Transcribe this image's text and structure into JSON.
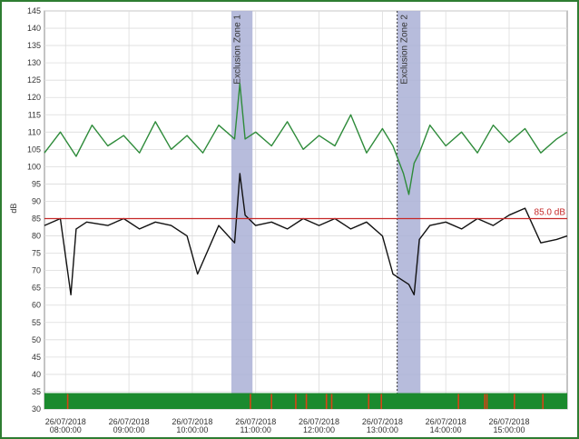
{
  "chart_data": {
    "type": "line",
    "title": "",
    "xlabel": "",
    "ylabel": "dB",
    "ylim": [
      30,
      145
    ],
    "yticks": [
      30,
      35,
      40,
      45,
      50,
      55,
      60,
      65,
      70,
      75,
      80,
      85,
      90,
      95,
      100,
      105,
      110,
      115,
      120,
      125,
      130,
      135,
      140,
      145
    ],
    "xlim": [
      "07:40",
      "15:55"
    ],
    "xticks": [
      {
        "date": "26/07/2018",
        "time": "08:00:00"
      },
      {
        "date": "26/07/2018",
        "time": "09:00:00"
      },
      {
        "date": "26/07/2018",
        "time": "10:00:00"
      },
      {
        "date": "26/07/2018",
        "time": "11:00:00"
      },
      {
        "date": "26/07/2018",
        "time": "12:00:00"
      },
      {
        "date": "26/07/2018",
        "time": "13:00:00"
      },
      {
        "date": "26/07/2018",
        "time": "14:00:00"
      },
      {
        "date": "26/07/2018",
        "time": "15:00:00"
      }
    ],
    "grid": true,
    "reference_line": {
      "value": 85.0,
      "label": "85.0 dB",
      "color": "#c62828"
    },
    "exclusion_zones": [
      {
        "label": "Exclusion Zone 1",
        "start": "10:37",
        "end": "10:57"
      },
      {
        "label": "Exclusion Zone 2",
        "start": "13:14",
        "end": "13:36"
      }
    ],
    "series": [
      {
        "color": "#2e8b3a",
        "x": [
          "07:40",
          "07:55",
          "08:10",
          "08:25",
          "08:40",
          "08:55",
          "09:10",
          "09:25",
          "09:40",
          "09:55",
          "10:10",
          "10:25",
          "10:40",
          "10:45",
          "10:50",
          "11:00",
          "11:15",
          "11:30",
          "11:45",
          "12:00",
          "12:15",
          "12:30",
          "12:45",
          "13:00",
          "13:10",
          "13:20",
          "13:25",
          "13:30",
          "13:35",
          "13:45",
          "14:00",
          "14:15",
          "14:30",
          "14:45",
          "15:00",
          "15:15",
          "15:30",
          "15:45",
          "15:55"
        ],
        "values": [
          104,
          110,
          103,
          112,
          106,
          109,
          104,
          113,
          105,
          109,
          104,
          112,
          108,
          124,
          108,
          110,
          106,
          113,
          105,
          109,
          106,
          115,
          104,
          111,
          106,
          98,
          92,
          101,
          104,
          112,
          106,
          110,
          104,
          112,
          107,
          111,
          104,
          108,
          110
        ]
      },
      {
        "color": "#111111",
        "x": [
          "07:40",
          "07:55",
          "08:05",
          "08:10",
          "08:20",
          "08:40",
          "08:55",
          "09:10",
          "09:25",
          "09:40",
          "09:55",
          "10:05",
          "10:25",
          "10:40",
          "10:45",
          "10:50",
          "11:00",
          "11:15",
          "11:30",
          "11:45",
          "12:00",
          "12:15",
          "12:30",
          "12:45",
          "13:00",
          "13:10",
          "13:15",
          "13:25",
          "13:30",
          "13:35",
          "13:45",
          "14:00",
          "14:15",
          "14:30",
          "14:45",
          "15:00",
          "15:15",
          "15:30",
          "15:45",
          "15:55"
        ],
        "values": [
          83,
          85,
          63,
          82,
          84,
          83,
          85,
          82,
          84,
          83,
          80,
          69,
          83,
          78,
          98,
          86,
          83,
          84,
          82,
          85,
          83,
          85,
          82,
          84,
          80,
          69,
          68,
          66,
          63,
          79,
          83,
          84,
          82,
          85,
          83,
          86,
          88,
          78,
          79,
          80
        ]
      }
    ],
    "timeline_bar": {
      "color": "#1b8a2e",
      "markers": [
        "08:02",
        "10:55",
        "11:15",
        "11:38",
        "11:48",
        "12:07",
        "12:12",
        "12:47",
        "12:59",
        "14:12",
        "14:37",
        "14:39",
        "15:05",
        "15:32"
      ],
      "marker_color": "#d84315"
    }
  }
}
